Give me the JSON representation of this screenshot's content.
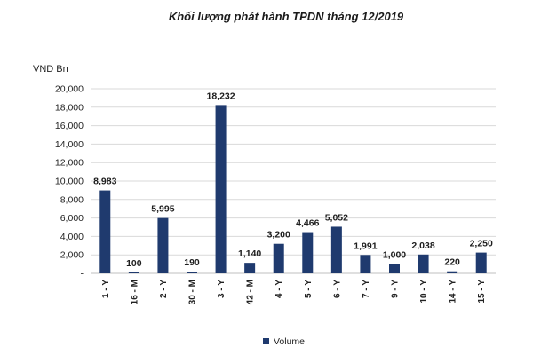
{
  "chart_data": {
    "type": "bar",
    "title": "Khối lượng phát hành TPDN tháng 12/2019",
    "ylabel": "VND Bn",
    "xlabel": "",
    "categories": [
      "1 - Y",
      "16 - M",
      "2 - Y",
      "30 - M",
      "3 - Y",
      "42 - M",
      "4 - Y",
      "5 - Y",
      "6 - Y",
      "7 - Y",
      "9 - Y",
      "10 - Y",
      "14 - Y",
      "15 - Y"
    ],
    "series": [
      {
        "name": "Volume",
        "values": [
          8983,
          100,
          5995,
          190,
          18232,
          1140,
          3200,
          4466,
          5052,
          1991,
          1000,
          2038,
          220,
          2250
        ],
        "labels": [
          "8,983",
          "100",
          "5,995",
          "190",
          "18,232",
          "1,140",
          "3,200",
          "4,466",
          "5,052",
          "1,991",
          "1,000",
          "2,038",
          "220",
          "2,250"
        ],
        "color": "#1f3a6e"
      }
    ],
    "ylim": [
      0,
      20000
    ],
    "yticks": [
      0,
      2000,
      4000,
      6000,
      8000,
      10000,
      12000,
      14000,
      16000,
      18000,
      20000
    ],
    "ytick_labels": [
      "-",
      "2,000",
      "4,000",
      "6,000",
      "8,000",
      "10,000",
      "12,000",
      "14,000",
      "16,000",
      "18,000",
      "20,000"
    ],
    "grid": true,
    "legend": "bottom"
  }
}
